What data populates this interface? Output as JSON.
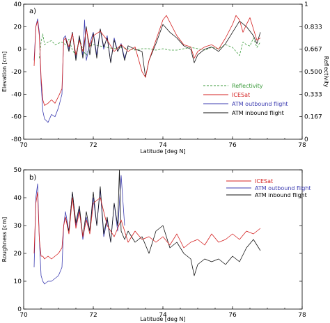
{
  "colors": {
    "icesat": "#d42020",
    "outbound": "#3b3bb0",
    "inbound": "#111111",
    "reflectivity": "#3a9a3a"
  },
  "chart_data": [
    {
      "type": "line",
      "panel_label": "a)",
      "xlabel": "Latitude [deg N]",
      "ylabel": "Elevation [cm]",
      "y2label": "Reflectivity",
      "xlim": [
        70,
        78
      ],
      "ylim": [
        -80,
        40
      ],
      "y2lim": [
        0,
        1
      ],
      "xticks": [
        "70",
        "72",
        "74",
        "76",
        "78"
      ],
      "yticks": [
        "-80",
        "-60",
        "-40",
        "-20",
        "0",
        "20",
        "40"
      ],
      "y2ticks": [
        "0",
        "0.167",
        "0.333",
        "0.500",
        "0.667",
        "0.833",
        "1"
      ],
      "legend": [
        {
          "name": "Reflectivity",
          "key": "reflectivity",
          "dash": true
        },
        {
          "name": "ICESat",
          "key": "icesat"
        },
        {
          "name": "ATM outbound flight",
          "key": "outbound"
        },
        {
          "name": "ATM inbound flight",
          "key": "inbound"
        }
      ],
      "series": [
        {
          "key": "reflectivity",
          "axis": "right",
          "dash": true,
          "x": [
            70.45,
            70.5,
            70.55,
            70.6,
            70.7,
            70.8,
            70.9,
            71.0,
            71.1,
            71.2,
            71.3,
            71.4,
            71.5,
            71.6,
            71.7,
            71.8,
            71.9,
            72.0,
            72.2,
            72.4,
            72.6,
            72.8,
            73.0,
            73.2,
            73.4,
            73.6,
            73.8,
            74.0,
            74.2,
            74.4,
            74.6,
            74.8,
            75.0,
            75.2,
            75.4,
            75.6,
            75.8,
            76.0,
            76.1,
            76.2,
            76.3,
            76.4,
            76.5,
            76.6,
            76.7,
            76.8
          ],
          "y": [
            0.6,
            0.72,
            0.78,
            0.7,
            0.72,
            0.73,
            0.7,
            0.71,
            0.72,
            0.7,
            0.74,
            0.66,
            0.62,
            0.75,
            0.66,
            0.62,
            0.69,
            0.7,
            0.69,
            0.68,
            0.67,
            0.68,
            0.67,
            0.66,
            0.67,
            0.67,
            0.66,
            0.67,
            0.66,
            0.66,
            0.67,
            0.68,
            0.67,
            0.66,
            0.68,
            0.67,
            0.7,
            0.68,
            0.65,
            0.62,
            0.72,
            0.7,
            0.69,
            0.75,
            0.68,
            0.72
          ]
        },
        {
          "key": "outbound",
          "axis": "left",
          "x": [
            70.3,
            70.35,
            70.4,
            70.45,
            70.5,
            70.55,
            70.6,
            70.7,
            70.8,
            70.9,
            71.0,
            71.1,
            71.15,
            71.2,
            71.3,
            71.4,
            71.5,
            71.6,
            71.7,
            71.75,
            71.8,
            71.9,
            72.0,
            72.1,
            72.2,
            72.3,
            72.4,
            72.5,
            72.6,
            72.7,
            72.8,
            72.9,
            73.0
          ],
          "y": [
            -10,
            20,
            27,
            15,
            -30,
            -55,
            -62,
            -65,
            -58,
            -60,
            -52,
            -40,
            10,
            12,
            0,
            15,
            -8,
            10,
            -5,
            26,
            -10,
            5,
            15,
            -5,
            18,
            0,
            12,
            -12,
            10,
            -2,
            5,
            -8,
            2
          ]
        },
        {
          "key": "inbound",
          "axis": "left",
          "x": [
            71.2,
            71.3,
            71.4,
            71.5,
            71.6,
            71.7,
            71.8,
            71.9,
            72.0,
            72.1,
            72.2,
            72.3,
            72.4,
            72.5,
            72.6,
            72.7,
            72.8,
            72.9,
            73.0,
            73.2,
            73.4,
            73.5,
            73.6,
            73.8,
            74.0,
            74.2,
            74.4,
            74.6,
            74.8,
            74.9,
            75.0,
            75.2,
            75.4,
            75.6,
            75.8,
            76.0,
            76.2,
            76.4,
            76.6,
            76.7,
            76.8
          ],
          "y": [
            10,
            -2,
            15,
            -10,
            12,
            -8,
            20,
            -5,
            14,
            -8,
            18,
            2,
            10,
            -12,
            8,
            -2,
            4,
            -10,
            3,
            0,
            -2,
            -25,
            -10,
            5,
            22,
            15,
            10,
            3,
            0,
            -12,
            -5,
            0,
            2,
            -2,
            5,
            15,
            25,
            20,
            12,
            5,
            15
          ]
        },
        {
          "key": "icesat",
          "axis": "left",
          "x": [
            70.3,
            70.35,
            70.4,
            70.45,
            70.5,
            70.55,
            70.6,
            70.7,
            70.8,
            70.9,
            71.0,
            71.1,
            71.15,
            71.2,
            71.3,
            71.4,
            71.5,
            71.6,
            71.7,
            71.8,
            71.9,
            72.0,
            72.2,
            72.4,
            72.6,
            72.8,
            73.0,
            73.2,
            73.4,
            73.5,
            73.6,
            73.8,
            74.0,
            74.1,
            74.2,
            74.4,
            74.6,
            74.8,
            74.9,
            75.0,
            75.2,
            75.4,
            75.6,
            75.8,
            76.0,
            76.1,
            76.2,
            76.3,
            76.4,
            76.5,
            76.6,
            76.7,
            76.8
          ],
          "y": [
            -15,
            20,
            25,
            12,
            -25,
            -45,
            -50,
            -48,
            -45,
            -48,
            -42,
            -35,
            8,
            10,
            2,
            14,
            -5,
            8,
            -2,
            18,
            2,
            12,
            16,
            8,
            -2,
            4,
            -2,
            2,
            -20,
            -25,
            -10,
            8,
            26,
            30,
            24,
            12,
            4,
            2,
            -8,
            -2,
            2,
            4,
            0,
            10,
            22,
            30,
            26,
            15,
            22,
            28,
            18,
            8,
            10
          ]
        }
      ]
    },
    {
      "type": "line",
      "panel_label": "b)",
      "xlabel": "Latitude [deg N]",
      "ylabel": "Roughness [cm]",
      "xlim": [
        70,
        78
      ],
      "ylim": [
        0,
        50
      ],
      "xticks": [
        "70",
        "72",
        "74",
        "76",
        "78"
      ],
      "yticks": [
        "0",
        "10",
        "20",
        "30",
        "40",
        "50"
      ],
      "legend": [
        {
          "name": "ICESat",
          "key": "icesat"
        },
        {
          "name": "ATM outbound flight",
          "key": "outbound"
        },
        {
          "name": "ATM inbound flight",
          "key": "inbound"
        }
      ],
      "series": [
        {
          "key": "outbound",
          "axis": "left",
          "x": [
            70.3,
            70.35,
            70.4,
            70.45,
            70.5,
            70.55,
            70.6,
            70.7,
            70.8,
            70.9,
            71.0,
            71.1,
            71.15,
            71.2,
            71.3,
            71.4,
            71.5,
            71.6,
            71.7,
            71.8,
            71.9,
            72.0,
            72.1,
            72.2,
            72.3,
            72.4,
            72.5,
            72.6,
            72.7,
            72.8,
            72.9
          ],
          "y": [
            15,
            40,
            45,
            25,
            12,
            10,
            9,
            10,
            10,
            11,
            12,
            15,
            30,
            35,
            28,
            42,
            30,
            36,
            25,
            33,
            28,
            40,
            30,
            43,
            26,
            32,
            24,
            38,
            28,
            48,
            30
          ]
        },
        {
          "key": "inbound",
          "axis": "left",
          "x": [
            71.2,
            71.3,
            71.4,
            71.5,
            71.6,
            71.7,
            71.8,
            71.9,
            72.0,
            72.1,
            72.2,
            72.3,
            72.4,
            72.5,
            72.6,
            72.7,
            72.75,
            72.8,
            72.9,
            73.0,
            73.2,
            73.4,
            73.6,
            73.8,
            74.0,
            74.2,
            74.4,
            74.6,
            74.8,
            74.9,
            75.0,
            75.2,
            75.4,
            75.6,
            75.8,
            76.0,
            76.2,
            76.4,
            76.6,
            76.8
          ],
          "y": [
            33,
            28,
            42,
            31,
            37,
            26,
            35,
            28,
            42,
            30,
            44,
            27,
            33,
            24,
            38,
            30,
            50,
            28,
            25,
            28,
            24,
            26,
            20,
            28,
            30,
            22,
            24,
            20,
            18,
            12,
            16,
            18,
            17,
            18,
            16,
            19,
            17,
            22,
            25,
            21
          ]
        },
        {
          "key": "icesat",
          "axis": "left",
          "x": [
            70.3,
            70.35,
            70.4,
            70.45,
            70.5,
            70.55,
            70.6,
            70.7,
            70.8,
            70.9,
            71.0,
            71.1,
            71.15,
            71.2,
            71.3,
            71.4,
            71.5,
            71.6,
            71.7,
            71.8,
            71.9,
            72.0,
            72.2,
            72.4,
            72.6,
            72.8,
            73.0,
            73.2,
            73.4,
            73.6,
            73.8,
            74.0,
            74.2,
            74.4,
            74.6,
            74.8,
            75.0,
            75.2,
            75.4,
            75.6,
            75.8,
            76.0,
            76.2,
            76.4,
            76.6,
            76.8
          ],
          "y": [
            20,
            38,
            42,
            25,
            19,
            19,
            18,
            19,
            18,
            19,
            20,
            22,
            30,
            33,
            27,
            40,
            29,
            35,
            26,
            32,
            27,
            38,
            40,
            30,
            26,
            32,
            24,
            28,
            25,
            26,
            24,
            26,
            23,
            27,
            22,
            24,
            25,
            23,
            27,
            24,
            25,
            27,
            25,
            28,
            27,
            29
          ]
        }
      ]
    }
  ]
}
